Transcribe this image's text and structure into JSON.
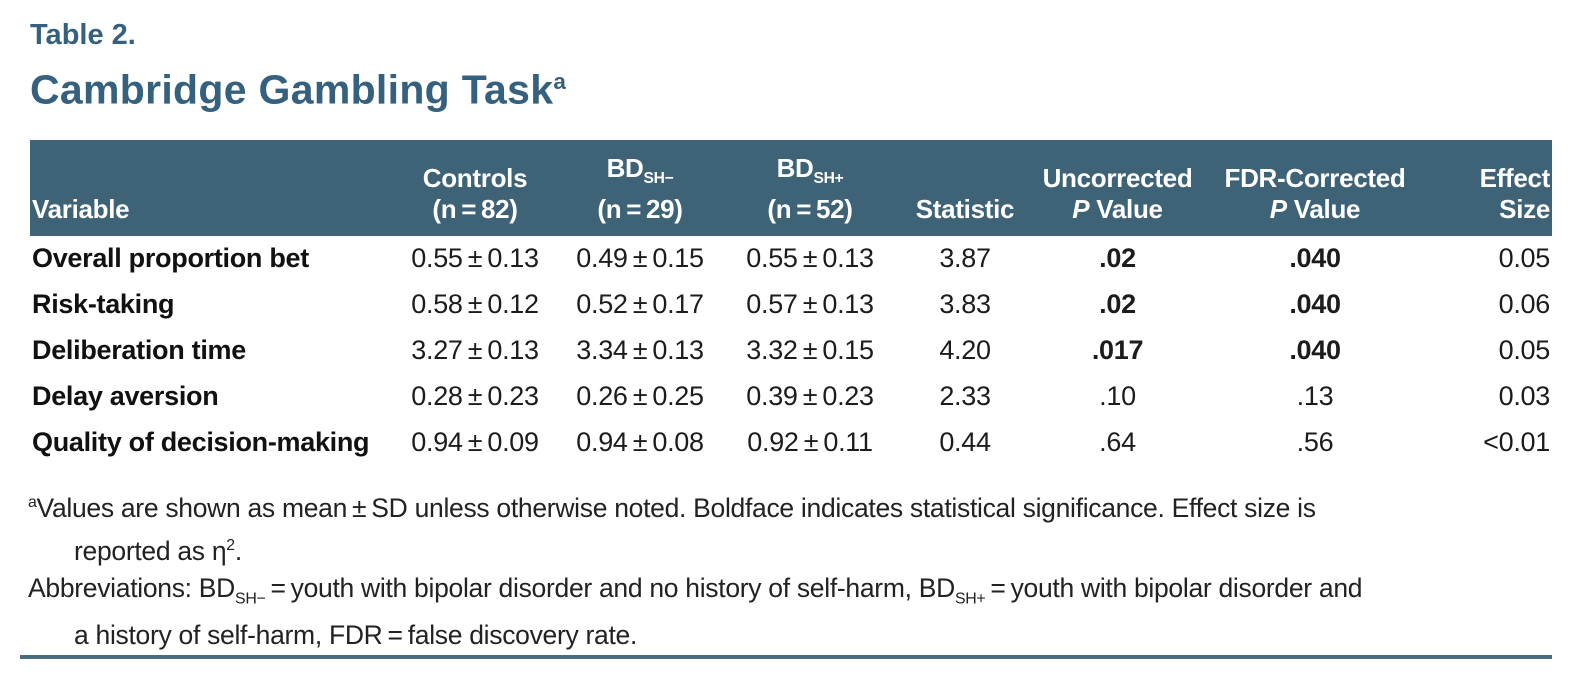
{
  "header": {
    "table_label": "Table 2.",
    "title": "Cambridge Gambling Task^a^"
  },
  "table": {
    "columns": [
      {
        "id": "variable",
        "label": "Variable"
      },
      {
        "id": "controls",
        "label": "Controls\n(n = 82)"
      },
      {
        "id": "bd-sh-minus",
        "label": "BD~SH−~\n(n = 29)"
      },
      {
        "id": "bd-sh-plus",
        "label": "BD~SH+~\n(n = 52)"
      },
      {
        "id": "statistic",
        "label": "Statistic"
      },
      {
        "id": "uncorrected-p",
        "label": "Uncorrected\n*P* Value"
      },
      {
        "id": "fdr-p",
        "label": "FDR-Corrected\n*P* Value"
      },
      {
        "id": "effect-size",
        "label": "Effect Size"
      }
    ],
    "rows": [
      [
        "Overall proportion bet",
        "0.55 ± 0.13",
        "0.49 ± 0.15",
        "0.55 ± 0.13",
        "3.87",
        "**.02**",
        "**.040**",
        "0.05"
      ],
      [
        "Risk-taking",
        "0.58 ± 0.12",
        "0.52 ± 0.17",
        "0.57 ± 0.13",
        "3.83",
        "**.02**",
        "**.040**",
        "0.06"
      ],
      [
        "Deliberation time",
        "3.27 ± 0.13",
        "3.34 ± 0.13",
        "3.32 ± 0.15",
        "4.20",
        "**.017**",
        "**.040**",
        "0.05"
      ],
      [
        "Delay aversion",
        "0.28 ± 0.23",
        "0.26 ± 0.25",
        "0.39 ± 0.23",
        "2.33",
        ".10",
        ".13",
        "0.03"
      ],
      [
        "Quality of decision-making",
        "0.94 ± 0.09",
        "0.94 ± 0.08",
        "0.92 ± 0.11",
        "0.44",
        ".64",
        ".56",
        "<0.01"
      ]
    ]
  },
  "footnotes": {
    "note_a": "^a^Values are shown as mean ± SD unless otherwise noted. Boldface indicates statistical significance. Effect size is\nreported as η^2^.",
    "abbreviations": "Abbreviations: BD~SH−~ = youth with bipolar disorder and no history of self-harm, BD~SH+~ = youth with bipolar disorder and\na history of self-harm, FDR = false discovery rate."
  },
  "colors": {
    "accent_teal": "#35607E",
    "header_bg": "#3E6376",
    "rule": "#4A6C80",
    "text": "#1C1C1C"
  }
}
